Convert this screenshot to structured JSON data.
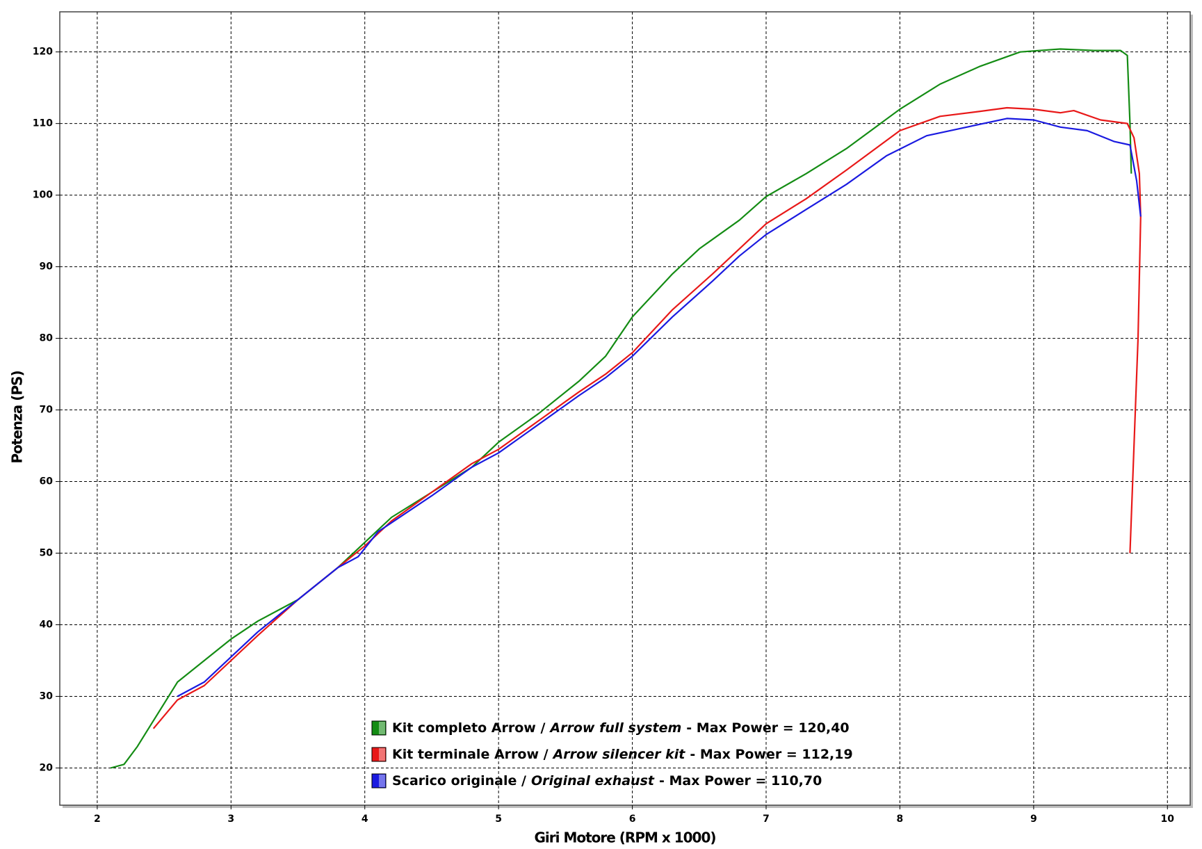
{
  "chart_data": {
    "type": "line",
    "x_label": "Giri Motore (RPM x 1000)",
    "y_label": "Potenza (PS)",
    "xlim": [
      1.72,
      10.17
    ],
    "xticks": [
      2,
      3,
      4,
      5,
      6,
      7,
      8,
      9,
      10
    ],
    "ylim": [
      14.8,
      125.6
    ],
    "yticks": [
      20,
      30,
      40,
      50,
      60,
      70,
      80,
      90,
      100,
      110,
      120
    ],
    "grid": true,
    "series": [
      {
        "name": "Kit completo Arrow /",
        "name_en": "Arrow full system",
        "max_power_text": "- Max Power = 120,40",
        "color": "#148c14",
        "x": [
          2.1,
          2.2,
          2.3,
          2.4,
          2.5,
          2.6,
          2.8,
          3.0,
          3.2,
          3.5,
          3.8,
          4.0,
          4.2,
          4.5,
          4.8,
          5.0,
          5.3,
          5.6,
          5.8,
          6.0,
          6.3,
          6.5,
          6.8,
          7.0,
          7.3,
          7.6,
          8.0,
          8.3,
          8.6,
          8.9,
          9.2,
          9.45,
          9.65,
          9.7,
          9.72,
          9.73
        ],
        "values": [
          20,
          20.5,
          23,
          26,
          29,
          32,
          35,
          38,
          40.5,
          43.5,
          48,
          51.5,
          55,
          58.5,
          62,
          65.5,
          69.5,
          74,
          77.5,
          83,
          89,
          92.5,
          96.5,
          99.8,
          103,
          106.5,
          112,
          115.5,
          118,
          120,
          120.4,
          120.2,
          120.2,
          119.5,
          110,
          103
        ]
      },
      {
        "name": "Kit terminale Arrow /",
        "name_en": "Arrow silencer kit",
        "max_power_text": "- Max Power = 112,19",
        "color": "#e81818",
        "x": [
          2.42,
          2.6,
          2.8,
          3.0,
          3.2,
          3.5,
          3.8,
          4.0,
          4.2,
          4.5,
          4.8,
          5.0,
          5.3,
          5.6,
          5.8,
          6.0,
          6.3,
          6.6,
          6.8,
          7.0,
          7.3,
          7.6,
          8.0,
          8.3,
          8.6,
          8.8,
          9.0,
          9.2,
          9.3,
          9.5,
          9.7,
          9.75,
          9.79,
          9.8,
          9.78,
          9.75,
          9.72
        ],
        "values": [
          25.5,
          29.5,
          31.5,
          35,
          38.5,
          43.5,
          48,
          51,
          54.5,
          58.5,
          62.5,
          64.5,
          68.5,
          72.5,
          75,
          78,
          84,
          89,
          92.5,
          96,
          99.5,
          103.5,
          109,
          111,
          111.7,
          112.2,
          112,
          111.5,
          111.8,
          110.5,
          110,
          108,
          103,
          97,
          80,
          65,
          50
        ]
      },
      {
        "name": "Scarico originale /",
        "name_en": "Original exhaust",
        "max_power_text": "- Max Power = 110,70",
        "color": "#1a1ae0",
        "x": [
          2.6,
          2.8,
          3.0,
          3.2,
          3.5,
          3.8,
          3.95,
          4.1,
          4.5,
          4.8,
          5.0,
          5.3,
          5.6,
          5.8,
          6.0,
          6.3,
          6.6,
          6.8,
          7.0,
          7.3,
          7.6,
          7.9,
          8.2,
          8.5,
          8.8,
          9.0,
          9.2,
          9.4,
          9.6,
          9.72,
          9.77,
          9.8
        ],
        "values": [
          30,
          32,
          35.5,
          39,
          43.5,
          48,
          49.5,
          53,
          58,
          62,
          64,
          68,
          72,
          74.5,
          77.5,
          83,
          88,
          91.5,
          94.5,
          98,
          101.5,
          105.5,
          108.3,
          109.5,
          110.7,
          110.5,
          109.5,
          109,
          107.5,
          107,
          102,
          97
        ]
      }
    ]
  }
}
